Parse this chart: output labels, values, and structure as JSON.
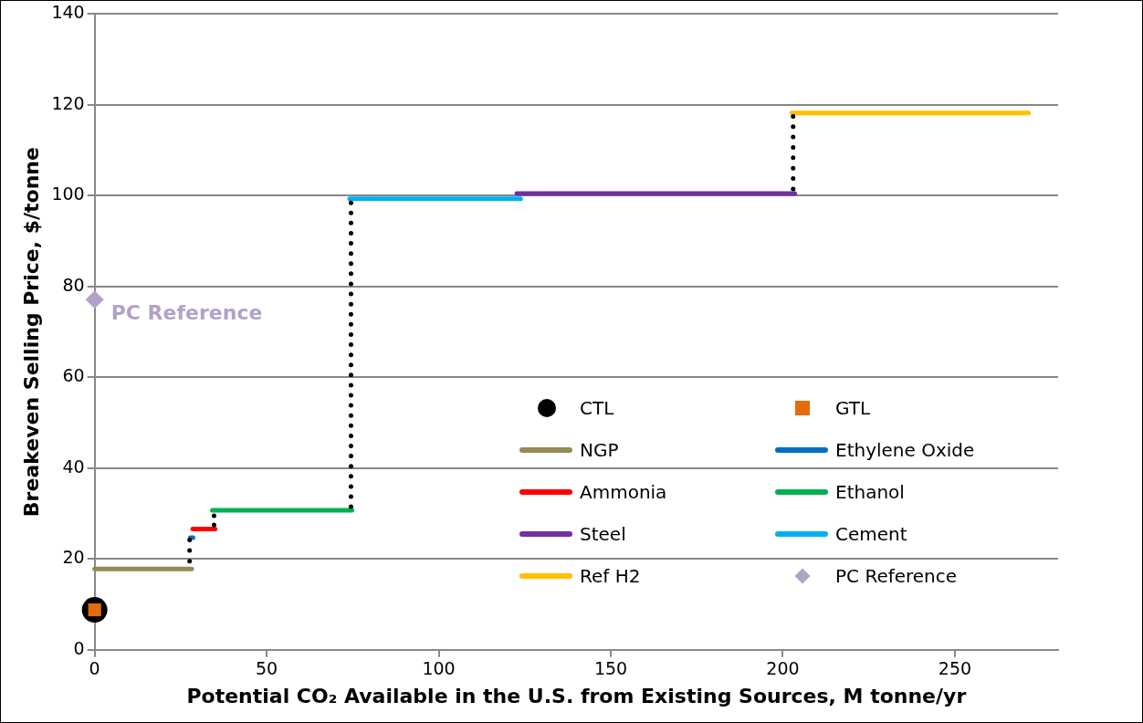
{
  "chart_data": {
    "type": "line",
    "xlabel": "Potential CO₂ Available in the U.S. from Existing Sources, M tonne/yr",
    "ylabel": "Breakeven Selling Price, $/tonne",
    "xlim": [
      0,
      280
    ],
    "xticks": [
      0,
      50,
      100,
      150,
      200,
      250
    ],
    "ylim": [
      0,
      140
    ],
    "yticks": [
      0,
      20,
      40,
      60,
      80,
      100,
      120,
      140
    ],
    "grid": "y",
    "legend": "bottom right",
    "series": [
      {
        "name": "CTL",
        "type": "scatter",
        "marker": "circle",
        "color": "#000000",
        "x": [
          0
        ],
        "values": [
          8.8
        ]
      },
      {
        "name": "GTL",
        "type": "scatter",
        "marker": "square",
        "color": "#e36c09",
        "x": [
          0
        ],
        "values": [
          8.8
        ]
      },
      {
        "name": "NGP",
        "marker": "none",
        "color": "#948a54",
        "x": [
          0,
          28.2
        ],
        "values": [
          17.8,
          17.8
        ]
      },
      {
        "name": "Ethylene Oxide",
        "marker": "none",
        "color": "#0070c0",
        "x": [
          27.8,
          28.6
        ],
        "values": [
          24.7,
          24.7
        ]
      },
      {
        "name": "Ammonia",
        "marker": "none",
        "color": "#ff0000",
        "x": [
          28.5,
          35
        ],
        "values": [
          26.6,
          26.6
        ]
      },
      {
        "name": "Ethanol",
        "marker": "none",
        "color": "#00b050",
        "x": [
          34.2,
          74.8
        ],
        "values": [
          30.7,
          30.7
        ]
      },
      {
        "name": "Steel",
        "marker": "none",
        "color": "#7030a0",
        "x": [
          122.7,
          203.5
        ],
        "values": [
          100.5,
          100.5
        ]
      },
      {
        "name": "Cement",
        "marker": "none",
        "color": "#00b0f0",
        "x": [
          74.1,
          123.8
        ],
        "values": [
          99.3,
          99.3
        ]
      },
      {
        "name": "Ref H2",
        "marker": "none",
        "color": "#ffc000",
        "x": [
          202.6,
          271.4
        ],
        "values": [
          118.2,
          118.2
        ]
      },
      {
        "name": "PC Reference",
        "type": "scatter",
        "marker": "diamond",
        "color": "#b3a2c7",
        "x": [
          0
        ],
        "values": [
          77.1
        ]
      },
      {
        "marker": "none",
        "line_style": "dotted",
        "color": "#000000",
        "x": [
          27.6,
          27.6
        ],
        "values": [
          19.5,
          24.2
        ]
      },
      {
        "marker": "none",
        "line_style": "dotted",
        "color": "#000000",
        "x": [
          34.7,
          34.7
        ],
        "values": [
          27.5,
          29.5
        ]
      },
      {
        "marker": "none",
        "line_style": "dotted",
        "color": "#000000",
        "x": [
          74.5,
          74.5
        ],
        "values": [
          31.5,
          98.5
        ]
      },
      {
        "marker": "none",
        "line_style": "dotted",
        "color": "#000000",
        "x": [
          203,
          203
        ],
        "values": [
          101.5,
          117.5
        ]
      }
    ],
    "annotations": [
      {
        "text": "PC Reference",
        "x": 0,
        "y": 77.1
      }
    ]
  }
}
